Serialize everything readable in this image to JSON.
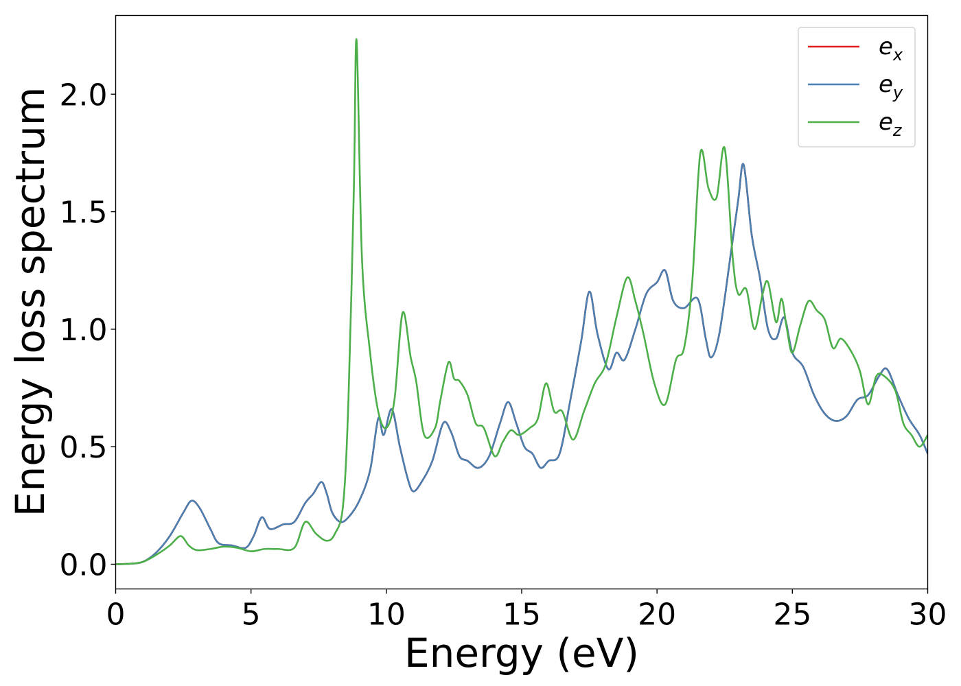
{
  "chart_data": {
    "type": "line",
    "xlabel": "Energy (eV)",
    "ylabel": "Energy loss spectrum",
    "xlim": [
      0,
      30
    ],
    "ylim": [
      -0.105,
      2.335
    ],
    "xticks": [
      0,
      5,
      10,
      15,
      20,
      25,
      30
    ],
    "xtick_labels": [
      "0",
      "5",
      "10",
      "15",
      "20",
      "25",
      "30"
    ],
    "yticks": [
      0.0,
      0.5,
      1.0,
      1.5,
      2.0
    ],
    "ytick_labels": [
      "0.0",
      "0.5",
      "1.0",
      "1.5",
      "2.0"
    ],
    "grid": false,
    "legend_position": "top-right",
    "series": [
      {
        "name": "e_x",
        "legend_base": "e",
        "legend_sub": "x",
        "color": "#e41a1c",
        "x": [
          0,
          0.5,
          1,
          1.5,
          2,
          2.5,
          2.8,
          3.1,
          3.5,
          3.8,
          4.3,
          4.8,
          5.1,
          5.4,
          5.7,
          6.2,
          6.6,
          7.0,
          7.3,
          7.6,
          7.8,
          8.0,
          8.3,
          8.6,
          9.0,
          9.4,
          9.7,
          9.9,
          10.2,
          10.5,
          10.8,
          11.0,
          11.3,
          11.7,
          12.1,
          12.4,
          12.7,
          13.0,
          13.4,
          13.8,
          14.2,
          14.5,
          14.8,
          15.1,
          15.4,
          15.7,
          16.0,
          16.4,
          16.8,
          17.2,
          17.5,
          17.8,
          18.2,
          18.5,
          18.8,
          19.2,
          19.6,
          20.0,
          20.3,
          20.6,
          21.0,
          21.5,
          21.8,
          22.0,
          22.3,
          22.7,
          23.0,
          23.2,
          23.5,
          23.8,
          24.1,
          24.4,
          24.7,
          25.0,
          25.4,
          25.8,
          26.2,
          26.6,
          27.0,
          27.4,
          27.8,
          28.2,
          28.5,
          28.9,
          29.3,
          29.7,
          30.0
        ],
        "y": [
          0.0,
          0.002,
          0.01,
          0.05,
          0.12,
          0.22,
          0.27,
          0.24,
          0.15,
          0.09,
          0.08,
          0.07,
          0.12,
          0.2,
          0.15,
          0.17,
          0.18,
          0.26,
          0.3,
          0.35,
          0.3,
          0.22,
          0.18,
          0.2,
          0.27,
          0.4,
          0.62,
          0.55,
          0.66,
          0.5,
          0.36,
          0.31,
          0.35,
          0.44,
          0.6,
          0.56,
          0.46,
          0.44,
          0.41,
          0.46,
          0.6,
          0.69,
          0.6,
          0.5,
          0.47,
          0.41,
          0.44,
          0.47,
          0.7,
          0.95,
          1.16,
          0.98,
          0.83,
          0.9,
          0.87,
          1.0,
          1.15,
          1.2,
          1.25,
          1.12,
          1.09,
          1.13,
          0.96,
          0.88,
          0.98,
          1.3,
          1.55,
          1.7,
          1.4,
          1.22,
          1.0,
          0.96,
          1.05,
          0.9,
          0.84,
          0.72,
          0.64,
          0.61,
          0.63,
          0.7,
          0.72,
          0.8,
          0.83,
          0.72,
          0.62,
          0.55,
          0.47
        ]
      },
      {
        "name": "e_y",
        "legend_base": "e",
        "legend_sub": "y",
        "color": "#4a7fb0",
        "x": [
          0,
          0.5,
          1,
          1.5,
          2,
          2.5,
          2.8,
          3.1,
          3.5,
          3.8,
          4.3,
          4.8,
          5.1,
          5.4,
          5.7,
          6.2,
          6.6,
          7.0,
          7.3,
          7.6,
          7.8,
          8.0,
          8.3,
          8.6,
          9.0,
          9.4,
          9.7,
          9.9,
          10.2,
          10.5,
          10.8,
          11.0,
          11.3,
          11.7,
          12.1,
          12.4,
          12.7,
          13.0,
          13.4,
          13.8,
          14.2,
          14.5,
          14.8,
          15.1,
          15.4,
          15.7,
          16.0,
          16.4,
          16.8,
          17.2,
          17.5,
          17.8,
          18.2,
          18.5,
          18.8,
          19.2,
          19.6,
          20.0,
          20.3,
          20.6,
          21.0,
          21.5,
          21.8,
          22.0,
          22.3,
          22.7,
          23.0,
          23.2,
          23.5,
          23.8,
          24.1,
          24.4,
          24.7,
          25.0,
          25.4,
          25.8,
          26.2,
          26.6,
          27.0,
          27.4,
          27.8,
          28.2,
          28.5,
          28.9,
          29.3,
          29.7,
          30.0
        ],
        "y": [
          0.0,
          0.002,
          0.01,
          0.05,
          0.12,
          0.22,
          0.27,
          0.24,
          0.15,
          0.09,
          0.08,
          0.07,
          0.12,
          0.2,
          0.15,
          0.17,
          0.18,
          0.26,
          0.3,
          0.35,
          0.3,
          0.22,
          0.18,
          0.2,
          0.27,
          0.4,
          0.62,
          0.55,
          0.66,
          0.5,
          0.36,
          0.31,
          0.35,
          0.44,
          0.6,
          0.56,
          0.46,
          0.44,
          0.41,
          0.46,
          0.6,
          0.69,
          0.6,
          0.5,
          0.47,
          0.41,
          0.44,
          0.47,
          0.7,
          0.95,
          1.16,
          0.98,
          0.83,
          0.9,
          0.87,
          1.0,
          1.15,
          1.2,
          1.25,
          1.12,
          1.09,
          1.13,
          0.96,
          0.88,
          0.98,
          1.3,
          1.55,
          1.7,
          1.4,
          1.22,
          1.0,
          0.96,
          1.05,
          0.9,
          0.84,
          0.72,
          0.64,
          0.61,
          0.63,
          0.7,
          0.72,
          0.8,
          0.83,
          0.72,
          0.62,
          0.55,
          0.47
        ]
      },
      {
        "name": "e_z",
        "legend_base": "e",
        "legend_sub": "z",
        "color": "#4daf4a",
        "x": [
          0,
          0.5,
          1,
          1.5,
          2,
          2.4,
          2.7,
          3.0,
          3.5,
          4.0,
          4.5,
          5.0,
          5.5,
          6.0,
          6.6,
          7.0,
          7.4,
          7.8,
          8.1,
          8.4,
          8.6,
          8.8,
          8.9,
          9.1,
          9.4,
          9.7,
          10.0,
          10.3,
          10.6,
          10.9,
          11.1,
          11.4,
          11.8,
          12.0,
          12.3,
          12.5,
          12.7,
          13.0,
          13.3,
          13.6,
          14.0,
          14.3,
          14.6,
          14.9,
          15.3,
          15.6,
          15.9,
          16.2,
          16.5,
          16.9,
          17.3,
          17.7,
          18.1,
          18.5,
          18.9,
          19.2,
          19.5,
          19.9,
          20.3,
          20.7,
          21.0,
          21.3,
          21.6,
          21.9,
          22.2,
          22.5,
          22.8,
          23.0,
          23.3,
          23.6,
          23.9,
          24.1,
          24.4,
          24.6,
          24.8,
          25.0,
          25.3,
          25.6,
          25.9,
          26.2,
          26.5,
          26.8,
          27.2,
          27.5,
          27.8,
          28.1,
          28.4,
          28.8,
          29.1,
          29.4,
          29.7,
          30.0
        ],
        "y": [
          0.0,
          0.002,
          0.01,
          0.04,
          0.08,
          0.12,
          0.08,
          0.06,
          0.065,
          0.075,
          0.07,
          0.055,
          0.065,
          0.065,
          0.07,
          0.18,
          0.13,
          0.1,
          0.13,
          0.25,
          0.7,
          1.6,
          2.23,
          1.3,
          0.9,
          0.65,
          0.58,
          0.7,
          1.07,
          0.88,
          0.78,
          0.55,
          0.58,
          0.7,
          0.86,
          0.79,
          0.78,
          0.72,
          0.6,
          0.58,
          0.46,
          0.52,
          0.57,
          0.55,
          0.58,
          0.62,
          0.77,
          0.65,
          0.65,
          0.53,
          0.65,
          0.77,
          0.85,
          1.05,
          1.22,
          1.12,
          0.98,
          0.77,
          0.68,
          0.87,
          0.92,
          1.2,
          1.75,
          1.6,
          1.56,
          1.77,
          1.3,
          1.15,
          1.17,
          1.0,
          1.15,
          1.2,
          1.03,
          1.13,
          1.0,
          0.9,
          1.02,
          1.12,
          1.08,
          1.04,
          0.92,
          0.96,
          0.9,
          0.82,
          0.68,
          0.8,
          0.8,
          0.74,
          0.6,
          0.55,
          0.5,
          0.55
        ]
      }
    ]
  }
}
